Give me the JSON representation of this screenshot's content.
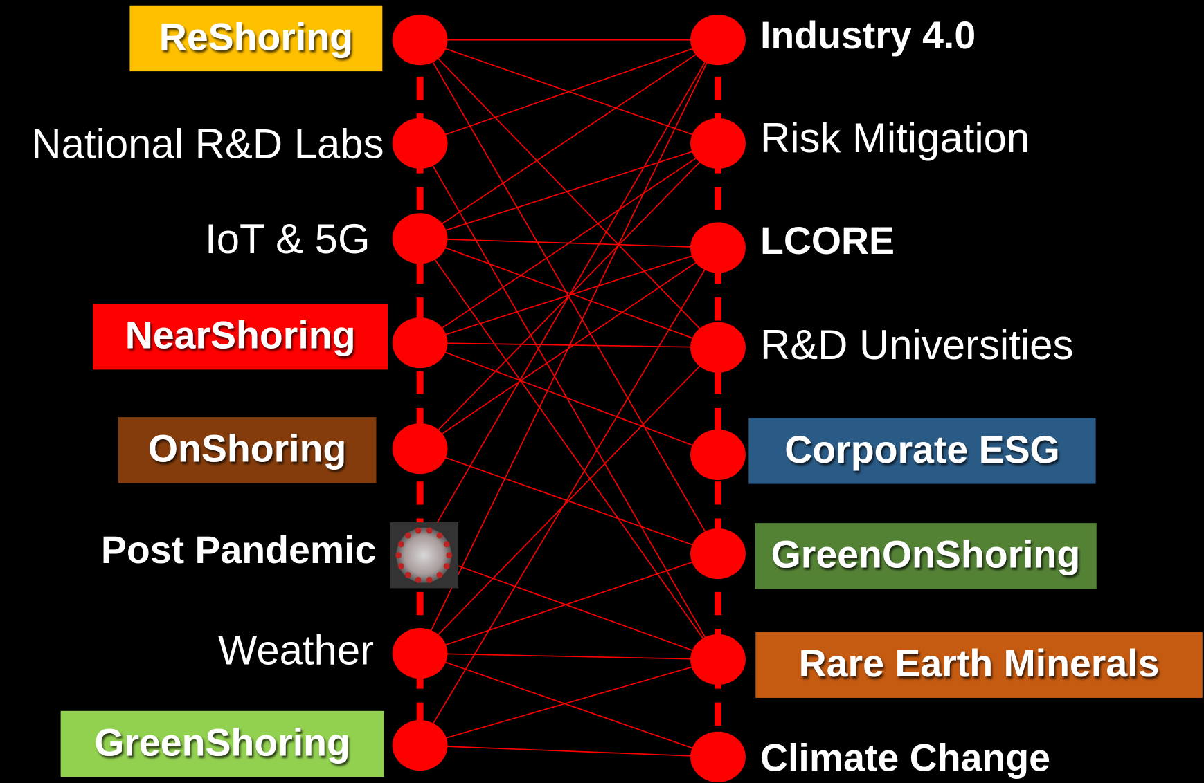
{
  "left_nodes": [
    {
      "label": "ReShoring"
    },
    {
      "label": "National R&D Labs"
    },
    {
      "label": "IoT & 5G"
    },
    {
      "label": "NearShoring"
    },
    {
      "label": "OnShoring"
    },
    {
      "label": "Post Pandemic"
    },
    {
      "label": "Weather"
    },
    {
      "label": "GreenShoring"
    }
  ],
  "right_nodes": [
    {
      "label": "Industry 4.0"
    },
    {
      "label": "Risk Mitigation"
    },
    {
      "label": "LCORE"
    },
    {
      "label": "R&D Universities"
    },
    {
      "label": "Corporate ESG"
    },
    {
      "label": "GreenOnShoring"
    },
    {
      "label": "Rare Earth Minerals"
    },
    {
      "label": "Climate Change"
    }
  ]
}
